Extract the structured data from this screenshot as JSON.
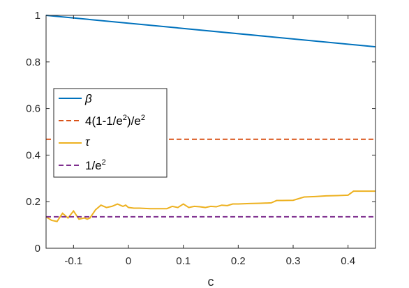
{
  "chart_data": {
    "type": "line",
    "title": "",
    "xlabel": "c",
    "ylabel": "",
    "xlim": [
      -0.15,
      0.45
    ],
    "ylim": [
      0,
      1
    ],
    "grid": false,
    "legend_position": "left",
    "xticks": [
      -0.1,
      0,
      0.1,
      0.2,
      0.3,
      0.4
    ],
    "xtick_labels": [
      "-0.1",
      "0",
      "0.1",
      "0.2",
      "0.3",
      "0.4"
    ],
    "yticks": [
      0,
      0.2,
      0.4,
      0.6,
      0.8,
      1
    ],
    "ytick_labels": [
      "0",
      "0.2",
      "0.4",
      "0.6",
      "0.8",
      "1"
    ],
    "series": [
      {
        "name": "β",
        "color": "#0072BD",
        "style": "solid",
        "x": [
          -0.15,
          0.45
        ],
        "y": [
          1.0,
          0.865
        ]
      },
      {
        "name": "4(1-1/e²)/e²",
        "color": "#D95319",
        "style": "dashed",
        "x": [
          -0.15,
          0.45
        ],
        "y": [
          0.468,
          0.468
        ]
      },
      {
        "name": "τ",
        "color": "#EDB120",
        "style": "solid",
        "x": [
          -0.15,
          -0.14,
          -0.13,
          -0.12,
          -0.11,
          -0.105,
          -0.1,
          -0.09,
          -0.08,
          -0.075,
          -0.07,
          -0.06,
          -0.05,
          -0.04,
          -0.03,
          -0.02,
          -0.01,
          -0.005,
          0.0,
          0.01,
          0.02,
          0.03,
          0.04,
          0.05,
          0.06,
          0.07,
          0.08,
          0.09,
          0.1,
          0.11,
          0.12,
          0.13,
          0.14,
          0.15,
          0.16,
          0.17,
          0.18,
          0.19,
          0.2,
          0.22,
          0.24,
          0.26,
          0.27,
          0.28,
          0.3,
          0.32,
          0.34,
          0.36,
          0.38,
          0.4,
          0.41,
          0.42,
          0.45
        ],
        "y": [
          0.135,
          0.12,
          0.115,
          0.15,
          0.13,
          0.145,
          0.16,
          0.125,
          0.13,
          0.125,
          0.13,
          0.165,
          0.185,
          0.175,
          0.18,
          0.19,
          0.18,
          0.185,
          0.175,
          0.172,
          0.172,
          0.171,
          0.17,
          0.17,
          0.17,
          0.17,
          0.18,
          0.175,
          0.19,
          0.175,
          0.18,
          0.178,
          0.175,
          0.18,
          0.178,
          0.185,
          0.183,
          0.19,
          0.19,
          0.192,
          0.193,
          0.195,
          0.205,
          0.205,
          0.206,
          0.22,
          0.222,
          0.225,
          0.226,
          0.228,
          0.245,
          0.245,
          0.245
        ]
      },
      {
        "name": "1/e²",
        "color": "#7E2F8E",
        "style": "dashed",
        "x": [
          -0.15,
          0.45
        ],
        "y": [
          0.135,
          0.135
        ]
      }
    ],
    "legend_labels": {
      "beta": "β",
      "orange": "4(1-1/e",
      "orange_sup1": "2",
      "orange_mid": ")/e",
      "orange_sup2": "2",
      "tau": "τ",
      "purple": "1/e",
      "purple_sup": "2"
    }
  }
}
